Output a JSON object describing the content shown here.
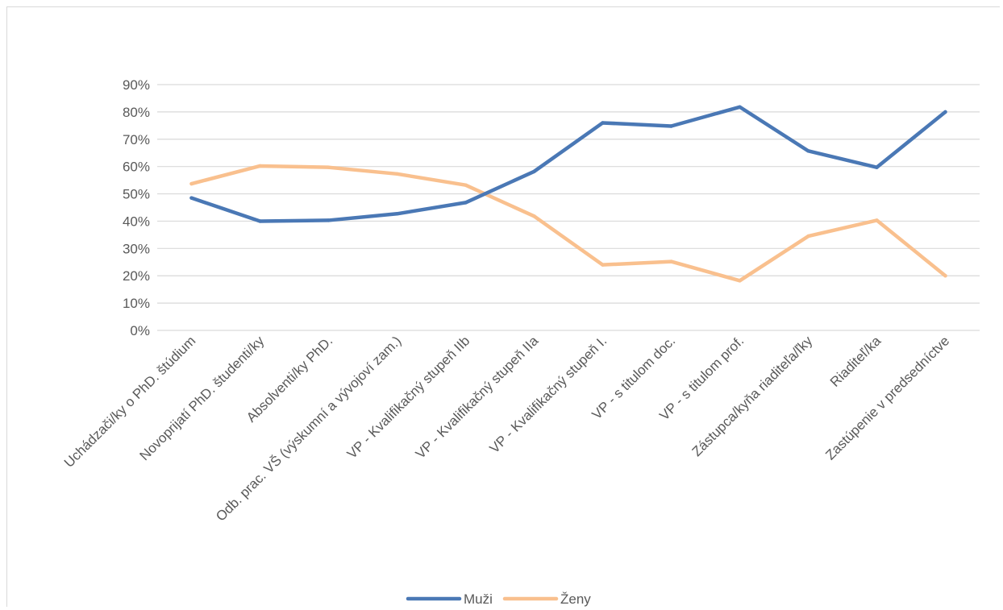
{
  "chart_data": {
    "type": "line",
    "title": "",
    "xlabel": "",
    "ylabel": "",
    "ylim": [
      0,
      0.9
    ],
    "y_ticks": [
      "0%",
      "10%",
      "20%",
      "30%",
      "40%",
      "50%",
      "60%",
      "70%",
      "80%",
      "90%"
    ],
    "grid": true,
    "legend_position": "bottom",
    "categories": [
      "Uchádzači/ky o PhD. štúdium",
      "Novoprijatí PhD. študenti/ky",
      "Absolventi/ky PhD.",
      "Odb. prac. VŠ (výskumní a vývojoví zam.)",
      "VP - Kvalifikačný stupeň IIb",
      "VP - Kvalifikačný stupeň IIa",
      "VP - Kvalifikačný stupeň I.",
      "VP - s titulom doc.",
      "VP - s titulom prof.",
      "Zástupca/kyňa riaditeľa/ľky",
      "Riaditeľ/ka",
      "Zastúpenie v predsedníctve"
    ],
    "series": [
      {
        "name": "Muži",
        "color": "#4a78b5",
        "values": [
          0.485,
          0.4,
          0.403,
          0.427,
          0.468,
          0.582,
          0.76,
          0.748,
          0.818,
          0.657,
          0.597,
          0.8
        ]
      },
      {
        "name": "Ženy",
        "color": "#f9c08e",
        "values": [
          0.537,
          0.602,
          0.597,
          0.573,
          0.532,
          0.418,
          0.24,
          0.252,
          0.182,
          0.345,
          0.403,
          0.2
        ]
      }
    ]
  }
}
